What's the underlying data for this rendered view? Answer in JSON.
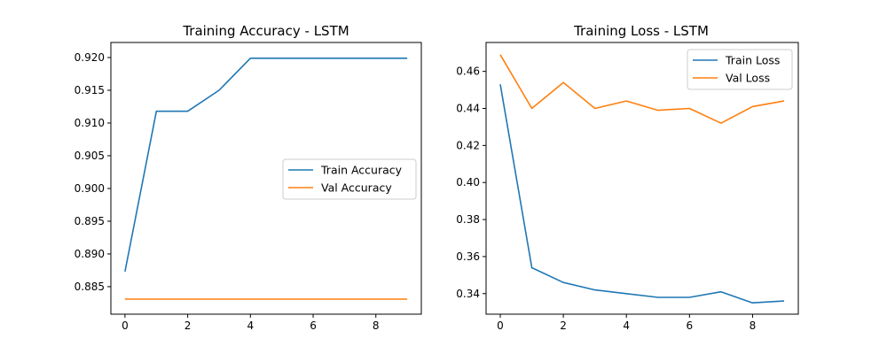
{
  "chart_data": [
    {
      "type": "line",
      "title": "Training Accuracy - LSTM",
      "xlabel": "",
      "ylabel": "",
      "x": [
        0,
        1,
        2,
        3,
        4,
        5,
        6,
        7,
        8,
        9
      ],
      "xlim": [
        -0.45,
        9.45
      ],
      "ylim": [
        0.8808,
        0.9223
      ],
      "xticks": [
        0,
        2,
        4,
        6,
        8
      ],
      "yticks": [
        0.885,
        0.89,
        0.895,
        0.9,
        0.905,
        0.91,
        0.915,
        0.92
      ],
      "ytick_labels": [
        "0.885",
        "0.890",
        "0.895",
        "0.900",
        "0.905",
        "0.910",
        "0.915",
        "0.920"
      ],
      "legend_position": "center-right",
      "grid": false,
      "series": [
        {
          "name": "Train Accuracy",
          "color": "#1f77b4",
          "values": [
            0.8873,
            0.9118,
            0.9118,
            0.915,
            0.9199,
            0.9199,
            0.9199,
            0.9199,
            0.9199,
            0.9199
          ]
        },
        {
          "name": "Val Accuracy",
          "color": "#ff7f0e",
          "values": [
            0.8831,
            0.8831,
            0.8831,
            0.8831,
            0.8831,
            0.8831,
            0.8831,
            0.8831,
            0.8831,
            0.8831
          ]
        }
      ]
    },
    {
      "type": "line",
      "title": "Training Loss - LSTM",
      "xlabel": "",
      "ylabel": "",
      "x": [
        0,
        1,
        2,
        3,
        4,
        5,
        6,
        7,
        8,
        9
      ],
      "xlim": [
        -0.45,
        9.45
      ],
      "ylim": [
        0.3289,
        0.4756
      ],
      "xticks": [
        0,
        2,
        4,
        6,
        8
      ],
      "yticks": [
        0.34,
        0.36,
        0.38,
        0.4,
        0.42,
        0.44,
        0.46
      ],
      "ytick_labels": [
        "0.34",
        "0.36",
        "0.38",
        "0.40",
        "0.42",
        "0.44",
        "0.46"
      ],
      "legend_position": "top-right",
      "grid": false,
      "series": [
        {
          "name": "Train Loss",
          "color": "#1f77b4",
          "values": [
            0.453,
            0.354,
            0.346,
            0.342,
            0.34,
            0.338,
            0.338,
            0.341,
            0.335,
            0.336
          ]
        },
        {
          "name": "Val Loss",
          "color": "#ff7f0e",
          "values": [
            0.469,
            0.44,
            0.454,
            0.44,
            0.444,
            0.439,
            0.44,
            0.432,
            0.441,
            0.444
          ]
        }
      ]
    }
  ]
}
